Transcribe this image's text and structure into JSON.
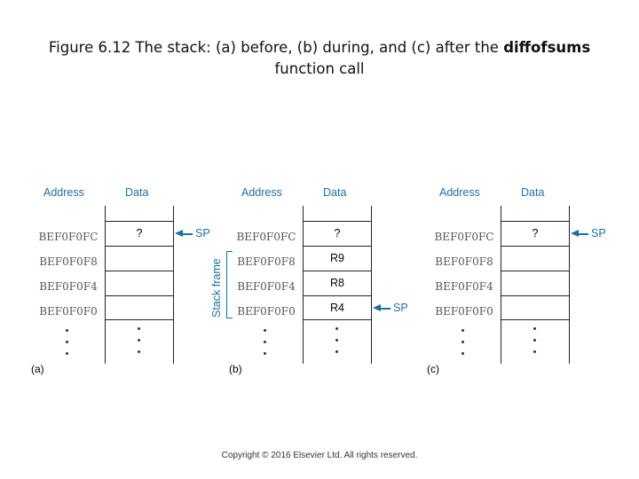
{
  "title": {
    "prefix": "Figure 6.12 The stack: (a) before, (b) during, and (c) after the ",
    "bold": "diffofsums",
    "suffix": " function call"
  },
  "columns": {
    "address": "Address",
    "data": "Data"
  },
  "panels": [
    {
      "label": "(a)",
      "rows": [
        {
          "address": "BEF0F0FC",
          "data": "?"
        },
        {
          "address": "BEF0F0F8",
          "data": ""
        },
        {
          "address": "BEF0F0F4",
          "data": ""
        },
        {
          "address": "BEF0F0F0",
          "data": ""
        }
      ],
      "sp": "SP"
    },
    {
      "label": "(b)",
      "rows": [
        {
          "address": "BEF0F0FC",
          "data": "?"
        },
        {
          "address": "BEF0F0F8",
          "data": "R9"
        },
        {
          "address": "BEF0F0F4",
          "data": "R8"
        },
        {
          "address": "BEF0F0F0",
          "data": "R4"
        }
      ],
      "sp": "SP",
      "frame_label": "Stack frame"
    },
    {
      "label": "(c)",
      "rows": [
        {
          "address": "BEF0F0FC",
          "data": "?"
        },
        {
          "address": "BEF0F0F8",
          "data": ""
        },
        {
          "address": "BEF0F0F4",
          "data": ""
        },
        {
          "address": "BEF0F0F0",
          "data": ""
        }
      ],
      "sp": "SP"
    }
  ],
  "colors": {
    "accent": "#1e6fa8"
  },
  "copyright": "Copyright © 2016 Elsevier Ltd. All rights reserved."
}
